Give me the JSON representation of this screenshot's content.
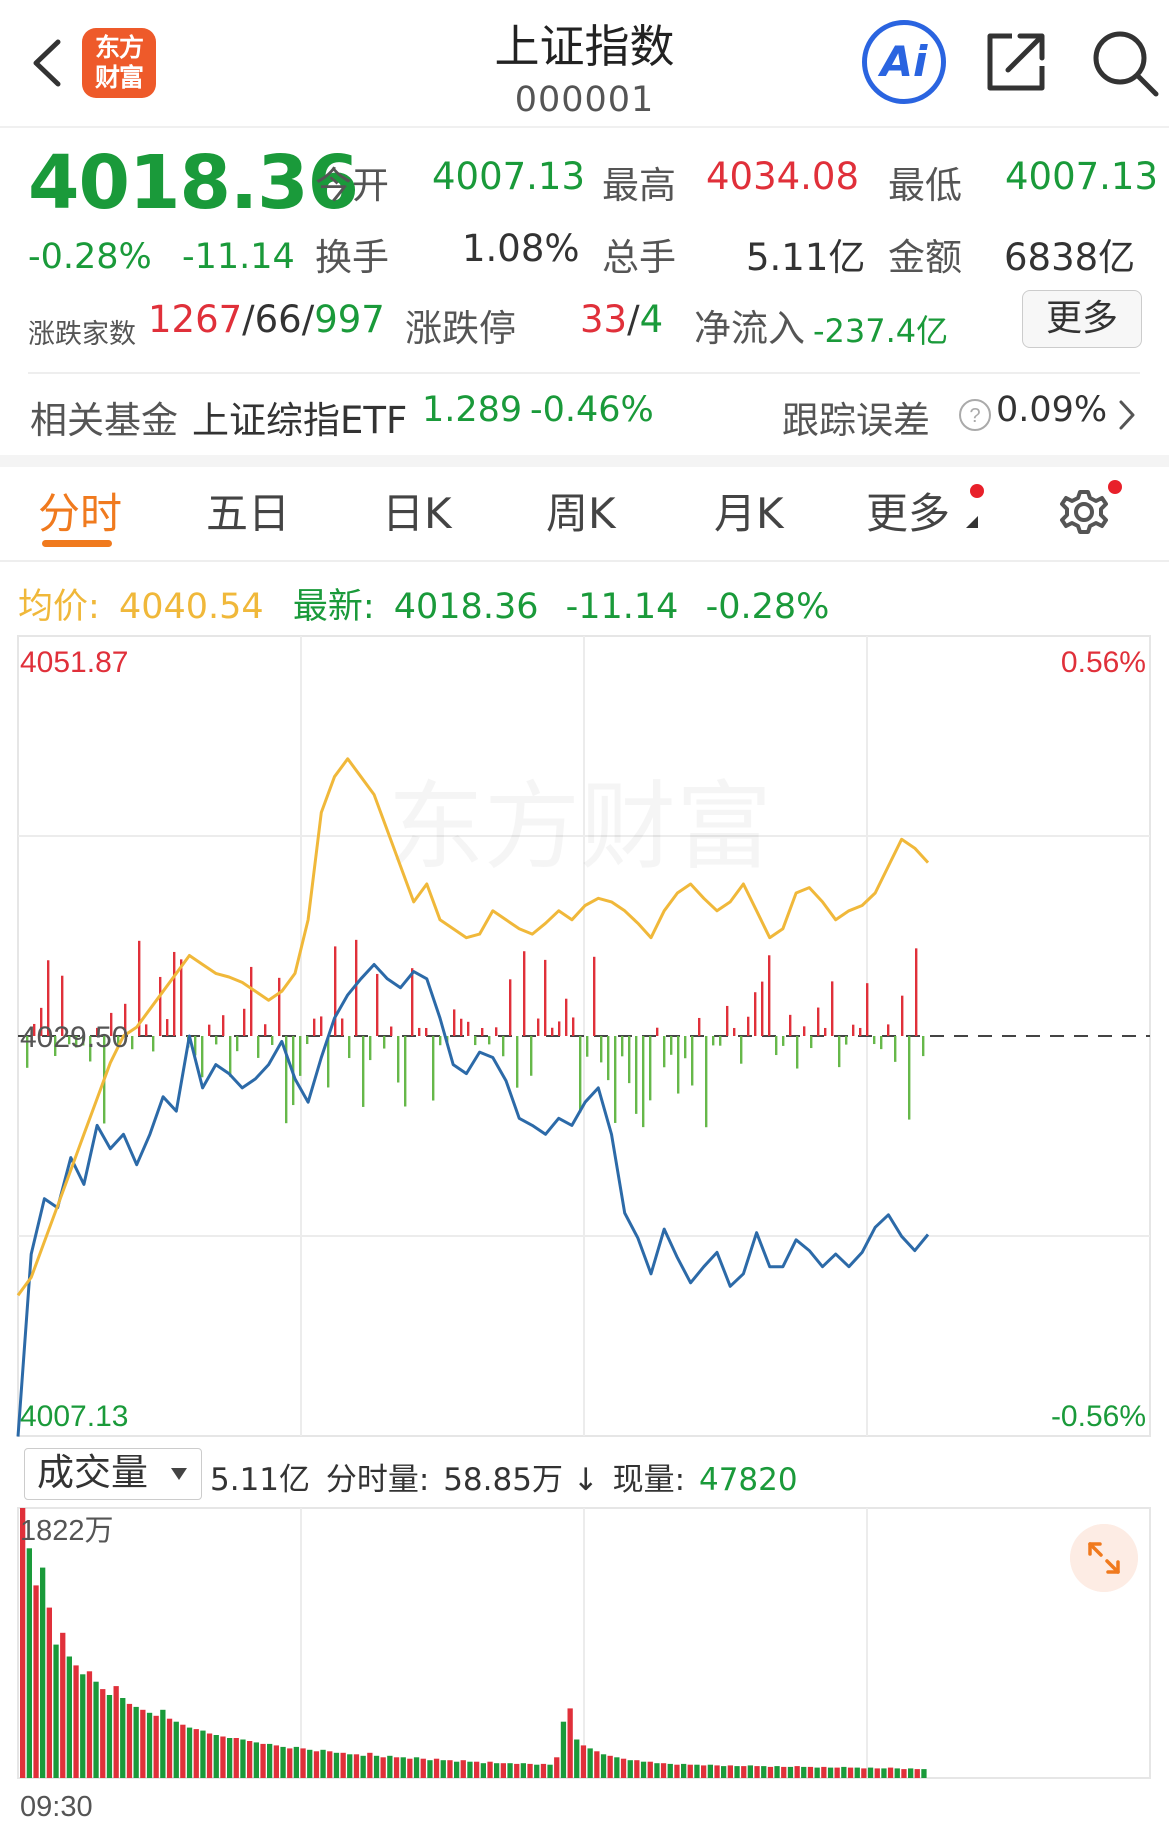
{
  "header": {
    "title": "上证指数",
    "code": "000001",
    "logo_line1": "东方",
    "logo_line2": "财富",
    "ai_label": "Ai"
  },
  "quote": {
    "price": "4018.36",
    "change_pct": "-0.28%",
    "change": "-11.14",
    "open_label": "今开",
    "open": "4007.13",
    "high_label": "最高",
    "high": "4034.08",
    "low_label": "最低",
    "low": "4007.13",
    "turnover_label": "换手",
    "turnover": "1.08%",
    "volume_label": "总手",
    "volume": "5.11亿",
    "amount_label": "金额",
    "amount": "6838亿",
    "breadth_label": "涨跌家数",
    "breadth_up": "1267",
    "breadth_flat": "66",
    "breadth_down": "997",
    "limit_label": "涨跌停",
    "limit_up": "33",
    "limit_down": "4",
    "netflow_label": "净流入",
    "netflow": "-237.4亿",
    "more_label": "更多"
  },
  "fund": {
    "label": "相关基金",
    "name": "上证综指ETF",
    "price": "1.289",
    "pct": "-0.46%",
    "tracking_label": "跟踪误差",
    "tracking_value": "0.09%"
  },
  "tabs": [
    {
      "label": "分时"
    },
    {
      "label": "五日"
    },
    {
      "label": "日K"
    },
    {
      "label": "周K"
    },
    {
      "label": "月K"
    },
    {
      "label": "更多"
    }
  ],
  "info_bar": {
    "avg_label": "均价:",
    "avg_value": "4040.54",
    "latest_label": "最新:",
    "latest_value": "4018.36",
    "latest_change": "-11.14",
    "latest_pct": "-0.28%"
  },
  "volume_bar": {
    "selector": "成交量",
    "total": "5.11亿",
    "minute_label": "分时量:",
    "minute_value": "58.85万",
    "current_label": "现量:",
    "current_value": "47820"
  },
  "colors": {
    "up": "#e0303a",
    "down": "#1a9a3a",
    "avg_line": "#f0b83a",
    "price_line": "#2c6aa8",
    "accent": "#f07a1e"
  },
  "chart_data": [
    {
      "type": "line",
      "y_top_label": "4051.87",
      "y_mid_label": "4029.50",
      "y_bottom_label": "4007.13",
      "pct_top_label": "0.56%",
      "pct_bottom_label": "-0.56%",
      "ylim": [
        4007.13,
        4051.87
      ],
      "baseline": 4029.5,
      "series": [
        {
          "values": [
            4007.1,
            4017.3,
            4020.4,
            4019.9,
            4022.7,
            4021.2,
            4024.5,
            4023.2,
            4024.0,
            4022.3,
            4024.0,
            4026.1,
            4025.3,
            4029.5,
            4026.6,
            4027.9,
            4027.4,
            4026.6,
            4027.1,
            4027.9,
            4029.2,
            4027.1,
            4025.8,
            4028.3,
            4030.5,
            4031.8,
            4032.7,
            4033.5,
            4032.7,
            4032.2,
            4033.1,
            4032.7,
            4030.5,
            4027.9,
            4027.4,
            4028.6,
            4028.3,
            4027.0,
            4024.9,
            4024.5,
            4024.0,
            4024.9,
            4024.5,
            4025.8,
            4026.6,
            4024.0,
            4019.6,
            4018.2,
            4016.2,
            4018.7,
            4017.1,
            4015.7,
            4016.6,
            4017.4,
            4015.5,
            4016.2,
            4018.5,
            4016.6,
            4016.6,
            4018.1,
            4017.5,
            4016.6,
            4017.3,
            4016.6,
            4017.4,
            4018.8,
            4019.5,
            4018.3,
            4017.5,
            4018.4
          ]
        },
        {
          "values": [
            4015.0,
            4016.0,
            4018.0,
            4020.0,
            4022.0,
            4024.0,
            4026.0,
            4028.0,
            4029.5,
            4030.0,
            4031.0,
            4032.0,
            4033.0,
            4034.0,
            4033.5,
            4033.0,
            4032.8,
            4032.5,
            4032.0,
            4031.5,
            4032.0,
            4033.0,
            4036.0,
            4042.0,
            4044.0,
            4045.0,
            4044.0,
            4043.0,
            4041.0,
            4039.0,
            4037.0,
            4038.0,
            4036.0,
            4035.5,
            4035.0,
            4035.2,
            4036.5,
            4036.0,
            4035.5,
            4035.2,
            4035.8,
            4036.5,
            4036.0,
            4036.8,
            4037.2,
            4037.0,
            4036.5,
            4035.8,
            4035.0,
            4036.5,
            4037.5,
            4038.0,
            4037.2,
            4036.5,
            4037.0,
            4038.0,
            4036.5,
            4035.0,
            4035.5,
            4037.5,
            4037.8,
            4037.0,
            4036.0,
            4036.5,
            4036.8,
            4037.5,
            4039.0,
            4040.5,
            4040.0,
            4039.2
          ]
        }
      ]
    },
    {
      "type": "bar",
      "y_top_label": "1822万",
      "x_start_label": "09:30",
      "ylim": [
        0,
        1822
      ],
      "values": [
        1822,
        1550,
        1300,
        1420,
        1150,
        900,
        980,
        820,
        760,
        700,
        720,
        650,
        600,
        560,
        620,
        540,
        500,
        480,
        460,
        440,
        420,
        460,
        400,
        380,
        360,
        340,
        330,
        320,
        300,
        290,
        280,
        270,
        270,
        260,
        250,
        240,
        230,
        230,
        220,
        210,
        200,
        210,
        200,
        190,
        180,
        190,
        180,
        170,
        170,
        160,
        160,
        150,
        170,
        150,
        140,
        150,
        140,
        140,
        130,
        140,
        130,
        120,
        130,
        120,
        120,
        110,
        120,
        110,
        110,
        100,
        110,
        100,
        100,
        100,
        95,
        100,
        95,
        90,
        95,
        90,
        140,
        380,
        470,
        260,
        220,
        200,
        180,
        160,
        150,
        140,
        130,
        120,
        120,
        110,
        110,
        100,
        100,
        95,
        90,
        95,
        90,
        90,
        85,
        90,
        85,
        80,
        85,
        80,
        80,
        85,
        80,
        80,
        75,
        80,
        75,
        75,
        80,
        75,
        75,
        70,
        75,
        70,
        70,
        75,
        70,
        70,
        65,
        70,
        65,
        65,
        70,
        65,
        60,
        65,
        60,
        60
      ]
    }
  ]
}
